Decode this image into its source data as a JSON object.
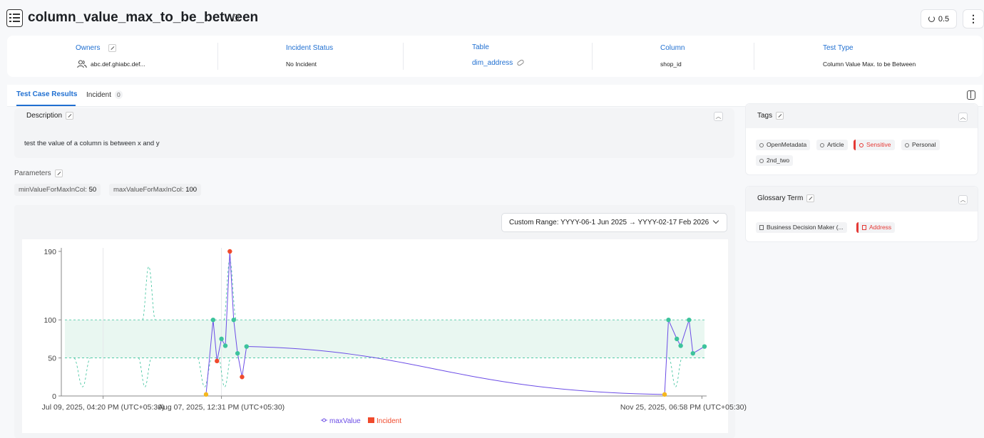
{
  "header": {
    "title": "column_value_max_to_be_between",
    "version_label": "0.5",
    "more_label": "⋮"
  },
  "info": {
    "owners_label": "Owners",
    "owners_value": "abc.def.ghiabc.def...",
    "incident_status_label": "Incident Status",
    "incident_status_value": "No Incident",
    "table_label": "Table",
    "table_value": "dim_address",
    "column_label": "Column",
    "column_value": "shop_id",
    "test_type_label": "Test Type",
    "test_type_value": "Column Value Max. to be Between"
  },
  "tabs": [
    {
      "label": "Test Case Results",
      "active": true
    },
    {
      "label": "Incident",
      "count": "0"
    }
  ],
  "description": {
    "title": "Description",
    "text": "test the value of a column is between x and y"
  },
  "parameters": {
    "title": "Parameters",
    "items": [
      {
        "name": "minValueForMaxInCol:",
        "value": "50"
      },
      {
        "name": "maxValueForMaxInCol:",
        "value": "100"
      }
    ]
  },
  "date_range": "Custom Range: YYYY-06-1 Jun 2025 → YYYY-02-17 Feb 2026",
  "chart_data": {
    "type": "line",
    "x_tick_labels": [
      "Jul 09, 2025, 04:20 PM (UTC+05:30)",
      "Aug 07, 2025, 12:31 PM (UTC+05:30)",
      "Nov 25, 2025, 06:58 PM (UTC+05:30)"
    ],
    "y_ticks": [
      0,
      50,
      100,
      190
    ],
    "ylim": [
      0,
      190
    ],
    "accepted_range": [
      50,
      100
    ],
    "series": [
      {
        "name": "maxValue",
        "color": "#6b4ce6",
        "points": [
          {
            "t": 0.225,
            "y": 2,
            "status": "aborted"
          },
          {
            "t": 0.236,
            "y": 100,
            "status": "success"
          },
          {
            "t": 0.242,
            "y": 46,
            "status": "failed"
          },
          {
            "t": 0.249,
            "y": 75,
            "status": "success"
          },
          {
            "t": 0.255,
            "y": 66,
            "status": "success"
          },
          {
            "t": 0.262,
            "y": 190,
            "status": "failed"
          },
          {
            "t": 0.268,
            "y": 100,
            "status": "success"
          },
          {
            "t": 0.274,
            "y": 56,
            "status": "success"
          },
          {
            "t": 0.281,
            "y": 25,
            "status": "failed"
          },
          {
            "t": 0.288,
            "y": 65,
            "status": "success"
          },
          {
            "t": 0.938,
            "y": 2,
            "status": "aborted"
          },
          {
            "t": 0.944,
            "y": 100,
            "status": "success"
          },
          {
            "t": 0.957,
            "y": 75,
            "status": "success"
          },
          {
            "t": 0.963,
            "y": 66,
            "status": "success"
          },
          {
            "t": 0.976,
            "y": 100,
            "status": "success"
          },
          {
            "t": 0.982,
            "y": 56,
            "status": "success"
          },
          {
            "t": 1.0,
            "y": 65,
            "status": "success"
          }
        ]
      }
    ],
    "legend": [
      {
        "label": "maxValue",
        "color": "#6b4ce6"
      },
      {
        "label": "Incident",
        "color": "#f04a2c"
      }
    ],
    "status_colors": {
      "success": "#3cc39c",
      "failed": "#f04a2c",
      "aborted": "#f5b71d"
    }
  },
  "tags": {
    "title": "Tags",
    "items": [
      {
        "label": "OpenMetadata"
      },
      {
        "label": "Article"
      },
      {
        "label": "Sensitive",
        "highlight": true
      },
      {
        "label": "Personal"
      },
      {
        "label": "2nd_two"
      }
    ]
  },
  "glossary": {
    "title": "Glossary Term",
    "items": [
      {
        "label": "Business Decision Maker (..."
      },
      {
        "label": "Address",
        "highlight": true
      }
    ]
  }
}
